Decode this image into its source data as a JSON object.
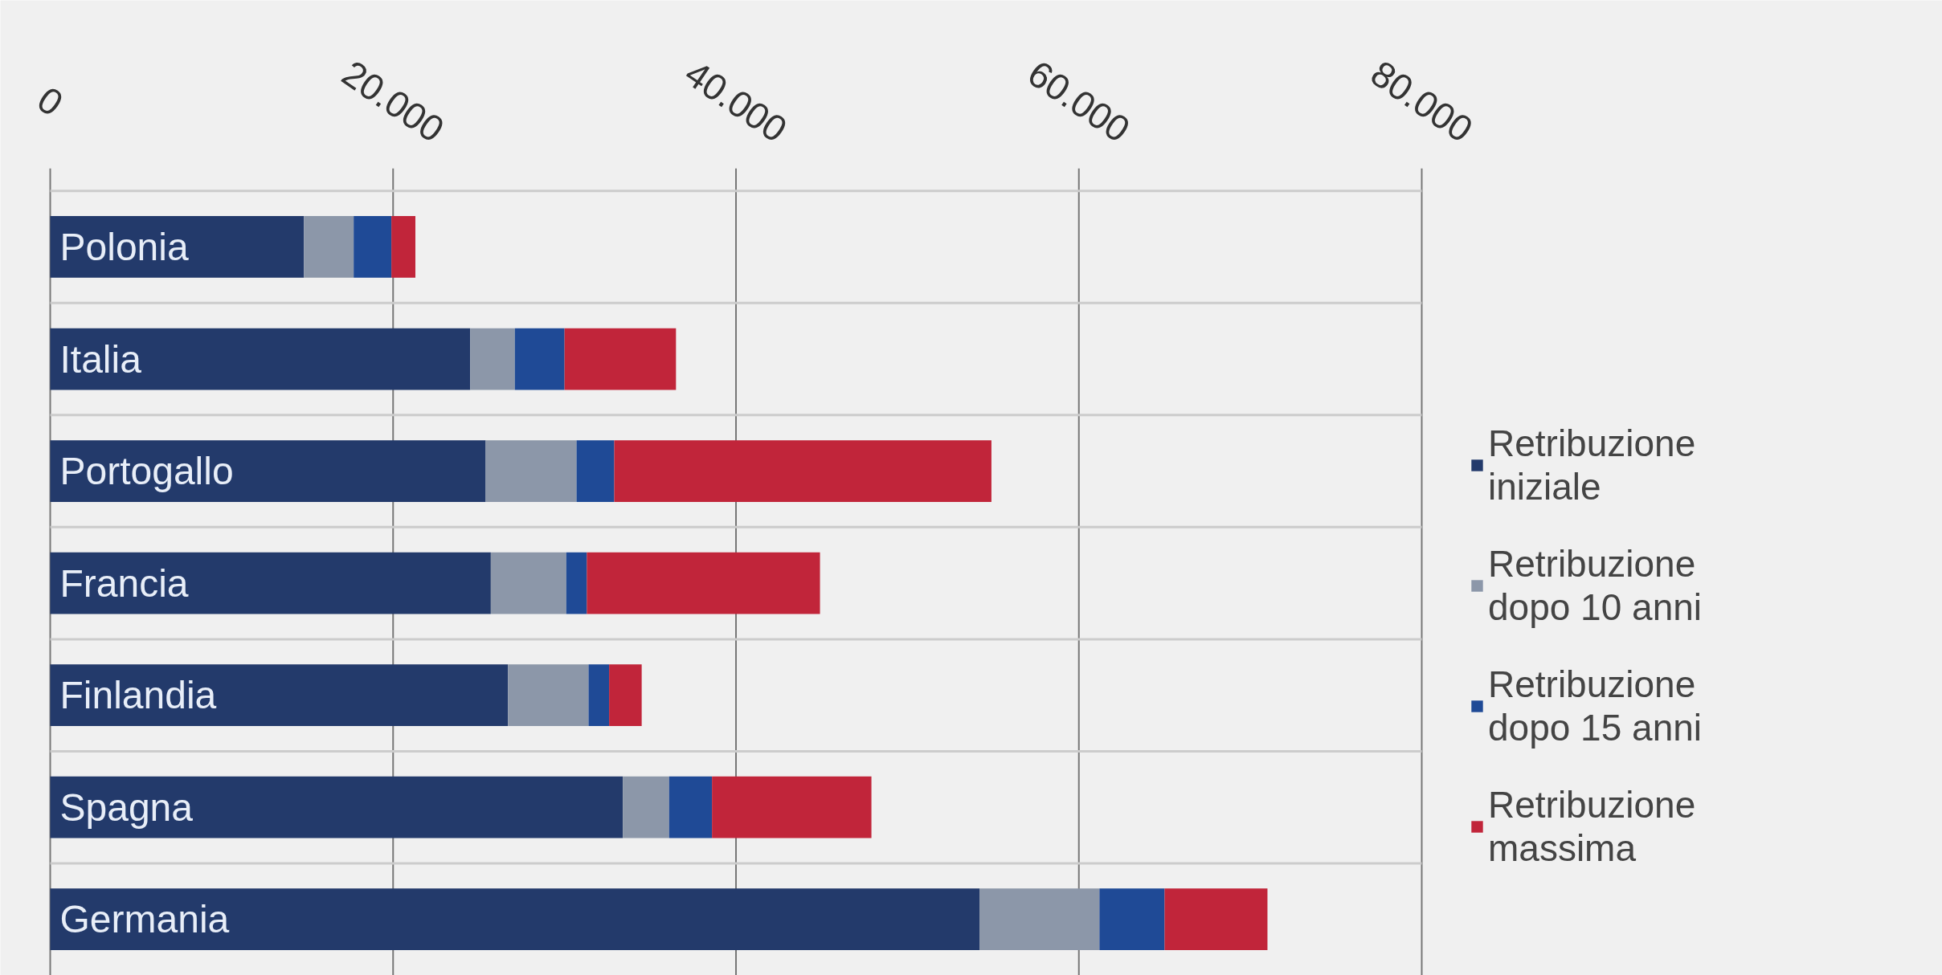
{
  "chart_data": {
    "type": "bar",
    "orientation": "horizontal",
    "stacked": true,
    "categories": [
      "Polonia",
      "Italia",
      "Portogallo",
      "Francia",
      "Finlandia",
      "Spagna",
      "Germania"
    ],
    "series": [
      {
        "name": "Retribuzione iniziale",
        "color": "#233a6b",
        "values": [
          14800,
          24500,
          25400,
          25700,
          26700,
          33400,
          54200
        ]
      },
      {
        "name": "Retribuzione dopo 10 anni",
        "color": "#8c97a9",
        "values": [
          2900,
          2600,
          5300,
          4400,
          4700,
          2700,
          7000
        ]
      },
      {
        "name": "Retribuzione dopo 15 anni",
        "color": "#1f4a96",
        "values": [
          2200,
          2900,
          2200,
          1200,
          1200,
          2500,
          3800
        ]
      },
      {
        "name": "Retribuzione massima",
        "color": "#c1253a",
        "values": [
          1400,
          6500,
          22000,
          13600,
          1900,
          9300,
          6000
        ]
      }
    ],
    "xlim": [
      0,
      80000
    ],
    "xticks": [
      0,
      {
        "value": 20000,
        "label": "20.000"
      },
      {
        "value": 40000,
        "label": "40.000"
      },
      {
        "value": 60000,
        "label": "60.000"
      },
      {
        "value": 80000,
        "label": "80.000"
      }
    ],
    "grid": true,
    "legend": "right"
  }
}
